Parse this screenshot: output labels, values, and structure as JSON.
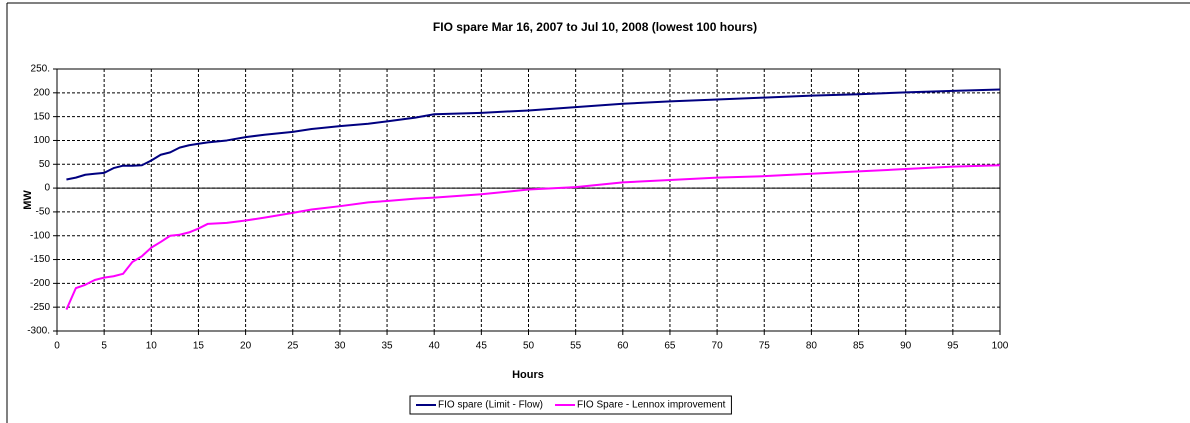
{
  "chart_data": {
    "type": "line",
    "title": "FIO spare Mar 16, 2007 to Jul 10, 2008 (lowest 100 hours)",
    "x_label": "Hours",
    "y_label": "MW",
    "x": [
      1,
      2,
      3,
      4,
      5,
      6,
      7,
      8,
      9,
      10,
      11,
      12,
      13,
      14,
      15,
      16,
      18,
      20,
      22,
      25,
      27,
      30,
      33,
      35,
      38,
      40,
      45,
      50,
      55,
      60,
      65,
      70,
      75,
      80,
      85,
      90,
      95,
      100
    ],
    "series": [
      {
        "name": "FIO spare (Limit - Flow)",
        "color": "#000080",
        "values": [
          18,
          22,
          28,
          30,
          32,
          42,
          47,
          47,
          48,
          58,
          70,
          75,
          85,
          90,
          93,
          96,
          100,
          107,
          112,
          118,
          124,
          130,
          135,
          140,
          148,
          155,
          158,
          163,
          170,
          177,
          182,
          186,
          190,
          194,
          197,
          201,
          204,
          207
        ]
      },
      {
        "name": "FIO Spare - Lennox improvement",
        "color": "#ff00ff",
        "values": [
          -255,
          -210,
          -203,
          -193,
          -188,
          -185,
          -180,
          -155,
          -143,
          -125,
          -113,
          -100,
          -98,
          -93,
          -85,
          -75,
          -73,
          -68,
          -62,
          -52,
          -45,
          -38,
          -30,
          -27,
          -22,
          -20,
          -13,
          -3,
          2,
          12,
          17,
          22,
          25,
          30,
          35,
          40,
          45,
          48
        ]
      }
    ],
    "xlim": [
      0,
      100
    ],
    "xticks": [
      0,
      5,
      10,
      15,
      20,
      25,
      30,
      35,
      40,
      45,
      50,
      55,
      60,
      65,
      70,
      75,
      80,
      85,
      90,
      95,
      100
    ],
    "ylim": [
      -300,
      250
    ],
    "yticks": [
      {
        "value": -300,
        "label": "-300."
      },
      -250,
      -200,
      -150,
      -100,
      -50,
      0,
      50,
      100,
      150,
      200,
      {
        "value": 250,
        "label": "250."
      }
    ],
    "grid": true,
    "legend": "bottom"
  }
}
